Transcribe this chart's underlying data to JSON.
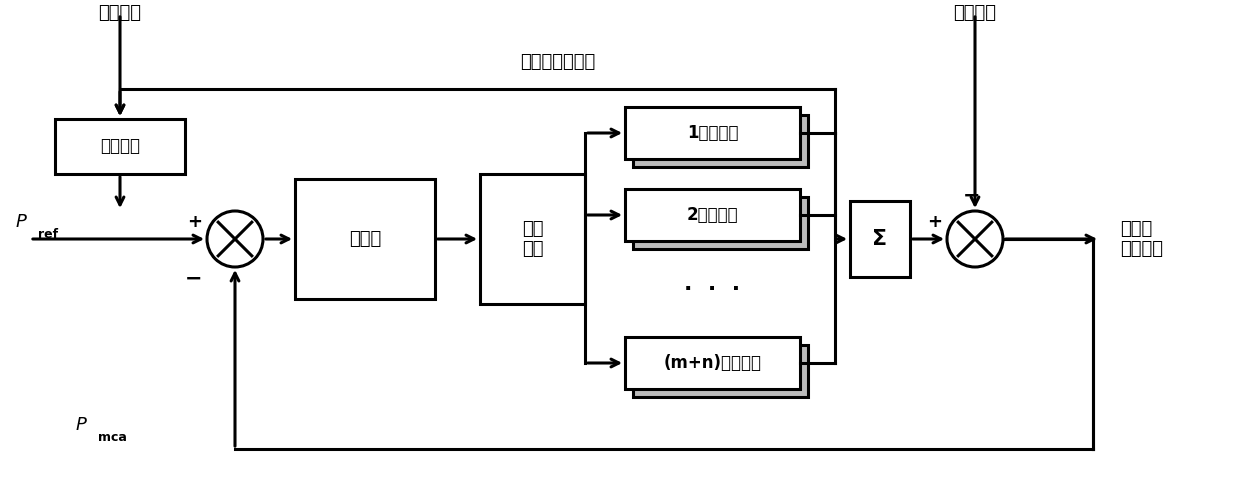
{
  "fig_width": 12.4,
  "fig_height": 5.04,
  "dpi": 100,
  "bg_color": "#ffffff",
  "grid_freq_label": "电网频率",
  "local_load_label": "本地负荷",
  "output_label": "并网点\n输出功率",
  "feedback_label": "逆变器当前功率",
  "freq_ctrl_label": "频率控制",
  "controller_label": "控制器",
  "power_dist_label": "功率\n分配",
  "inv1_label": "1号逆变器",
  "inv2_label": "2号逆变器",
  "invn_label": "(m+n)号逆变器",
  "sigma_label": "Σ",
  "p_ref_label": "P",
  "p_ref_sub": "ref",
  "p_mca_label": "P",
  "p_mca_sub": "mca",
  "dots_label": "·  ·  ·"
}
